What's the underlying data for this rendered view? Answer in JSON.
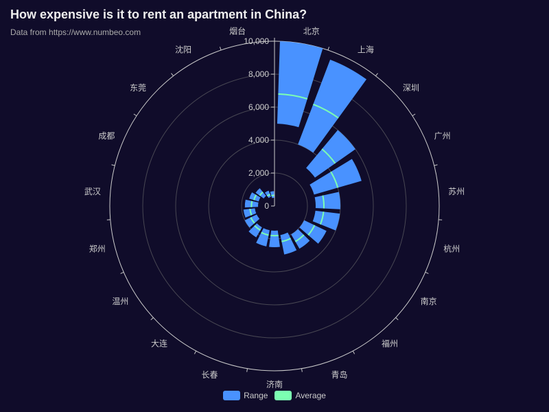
{
  "title": "How expensive is it to rent an apartment in China?",
  "subtitle": "Data from https://www.numbeo.com",
  "colors": {
    "background": "#100c2a",
    "range": "#4992ff",
    "average": "#7cffb2",
    "axis": "#cccccc",
    "split": "#484753"
  },
  "chart_data": {
    "type": "bar",
    "polar": true,
    "categories": [
      "北京",
      "上海",
      "深圳",
      "广州",
      "苏州",
      "杭州",
      "南京",
      "福州",
      "青岛",
      "济南",
      "长春",
      "大连",
      "温州",
      "郑州",
      "武汉",
      "成都",
      "东莞",
      "沈阳",
      "烟台"
    ],
    "radial_axis": {
      "min": 0,
      "max": 10000,
      "ticks": [
        "0",
        "2,000",
        "4,000",
        "6,000",
        "8,000",
        "10,000"
      ]
    },
    "series": [
      {
        "name": "Range",
        "ranges": [
          [
            5000,
            10000
          ],
          [
            4000,
            9500
          ],
          [
            3000,
            6000
          ],
          [
            2500,
            5500
          ],
          [
            2500,
            4000
          ],
          [
            2500,
            4000
          ],
          [
            2000,
            3500
          ],
          [
            2000,
            3000
          ],
          [
            1800,
            3000
          ],
          [
            1500,
            2500
          ],
          [
            1500,
            2500
          ],
          [
            1500,
            2200
          ],
          [
            1200,
            2000
          ],
          [
            1200,
            1900
          ],
          [
            1000,
            1800
          ],
          [
            1000,
            1600
          ],
          [
            800,
            1400
          ],
          [
            600,
            1000
          ],
          [
            500,
            900
          ]
        ]
      },
      {
        "name": "Average",
        "values": [
          6800,
          6600,
          4500,
          4000,
          3000,
          3000,
          2700,
          2500,
          2200,
          1800,
          1800,
          1700,
          1600,
          1500,
          1400,
          1300,
          1100,
          750,
          650
        ]
      }
    ],
    "legend": {
      "position": "bottom",
      "items": [
        "Range",
        "Average"
      ]
    }
  }
}
